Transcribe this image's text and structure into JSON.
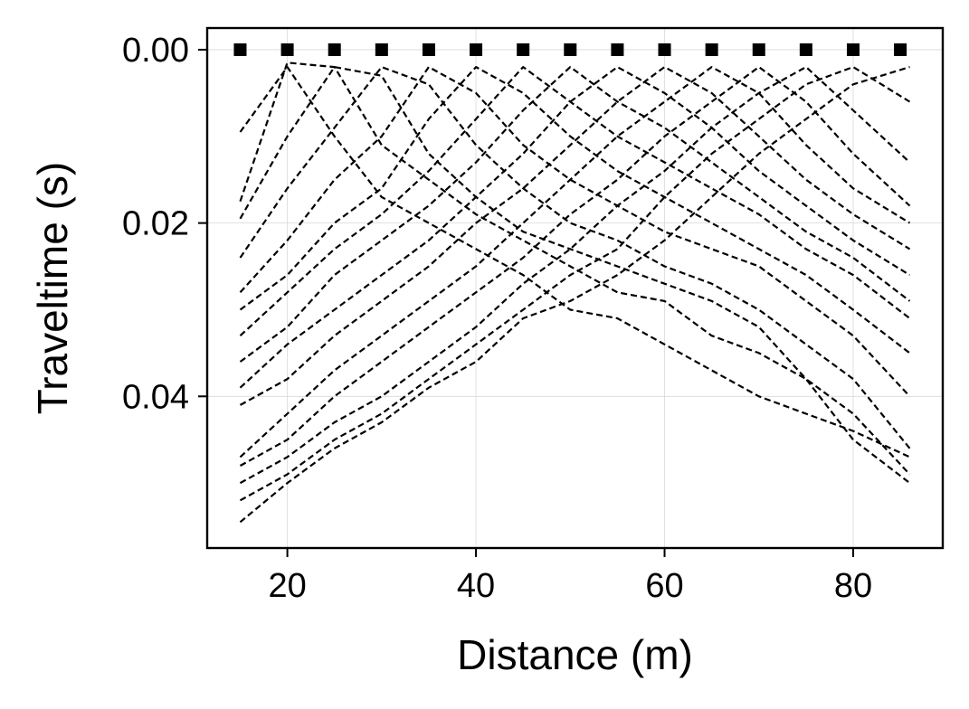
{
  "chart_data": {
    "type": "line",
    "xlabel": "Distance (m)",
    "ylabel": "Traveltime (s)",
    "xlim": [
      11.5,
      89.5
    ],
    "ylim": [
      0.0575,
      -0.0025
    ],
    "y_inverted": true,
    "grid": true,
    "x_ticks": [
      {
        "value": 20,
        "label": "20"
      },
      {
        "value": 40,
        "label": "40"
      },
      {
        "value": 60,
        "label": "60"
      },
      {
        "value": 80,
        "label": "80"
      }
    ],
    "y_ticks": [
      {
        "value": 0.0,
        "label": "0.00"
      },
      {
        "value": 0.02,
        "label": "0.02"
      },
      {
        "value": 0.04,
        "label": "0.04"
      }
    ],
    "line_style": "dashed",
    "line_color": "#000000",
    "source_marker": "square",
    "sources": {
      "x": [
        15,
        20,
        25,
        30,
        35,
        40,
        45,
        50,
        55,
        60,
        65,
        70,
        75,
        80,
        85
      ],
      "y": [
        0,
        0,
        0,
        0,
        0,
        0,
        0,
        0,
        0,
        0,
        0,
        0,
        0,
        0,
        0
      ]
    },
    "receivers_x": [
      15,
      20,
      25,
      30,
      35,
      40,
      45,
      50,
      55,
      60,
      65,
      70,
      75,
      80,
      86
    ],
    "series": [
      {
        "source_x": 15,
        "values": [
          0.0095,
          0.002,
          0.01,
          0.017,
          0.02,
          0.023,
          0.026,
          0.03,
          0.031,
          0.034,
          0.037,
          0.04,
          0.042,
          0.044,
          0.047
        ]
      },
      {
        "source_x": 20,
        "values": [
          0.0175,
          0.0015,
          0.002,
          0.011,
          0.015,
          0.019,
          0.022,
          0.025,
          0.028,
          0.029,
          0.033,
          0.035,
          0.038,
          0.042,
          0.049
        ]
      },
      {
        "source_x": 25,
        "values": [
          0.0195,
          0.01,
          0.002,
          0.003,
          0.012,
          0.017,
          0.021,
          0.023,
          0.025,
          0.027,
          0.029,
          0.032,
          0.038,
          0.045,
          0.05
        ]
      },
      {
        "source_x": 30,
        "values": [
          0.024,
          0.016,
          0.009,
          0.002,
          0.004,
          0.011,
          0.016,
          0.02,
          0.022,
          0.025,
          0.027,
          0.03,
          0.034,
          0.038,
          0.046
        ]
      },
      {
        "source_x": 35,
        "values": [
          0.028,
          0.022,
          0.015,
          0.01,
          0.002,
          0.005,
          0.011,
          0.015,
          0.018,
          0.021,
          0.023,
          0.025,
          0.029,
          0.033,
          0.04
        ]
      },
      {
        "source_x": 40,
        "values": [
          0.03,
          0.026,
          0.02,
          0.016,
          0.008,
          0.002,
          0.005,
          0.01,
          0.014,
          0.017,
          0.02,
          0.023,
          0.026,
          0.03,
          0.035
        ]
      },
      {
        "source_x": 45,
        "values": [
          0.033,
          0.028,
          0.023,
          0.019,
          0.014,
          0.008,
          0.002,
          0.006,
          0.01,
          0.013,
          0.016,
          0.019,
          0.023,
          0.026,
          0.031
        ]
      },
      {
        "source_x": 50,
        "values": [
          0.036,
          0.032,
          0.026,
          0.022,
          0.018,
          0.013,
          0.007,
          0.002,
          0.006,
          0.009,
          0.013,
          0.017,
          0.021,
          0.024,
          0.029
        ]
      },
      {
        "source_x": 55,
        "values": [
          0.039,
          0.034,
          0.03,
          0.026,
          0.022,
          0.017,
          0.012,
          0.006,
          0.002,
          0.005,
          0.009,
          0.014,
          0.018,
          0.022,
          0.026
        ]
      },
      {
        "source_x": 60,
        "values": [
          0.041,
          0.038,
          0.033,
          0.029,
          0.025,
          0.02,
          0.016,
          0.011,
          0.006,
          0.002,
          0.005,
          0.01,
          0.015,
          0.019,
          0.023
        ]
      },
      {
        "source_x": 65,
        "values": [
          0.047,
          0.042,
          0.037,
          0.033,
          0.029,
          0.025,
          0.02,
          0.015,
          0.01,
          0.006,
          0.002,
          0.005,
          0.011,
          0.016,
          0.02
        ]
      },
      {
        "source_x": 70,
        "values": [
          0.048,
          0.045,
          0.04,
          0.036,
          0.032,
          0.028,
          0.024,
          0.019,
          0.015,
          0.01,
          0.006,
          0.002,
          0.006,
          0.012,
          0.018
        ]
      },
      {
        "source_x": 75,
        "values": [
          0.05,
          0.047,
          0.043,
          0.04,
          0.036,
          0.032,
          0.027,
          0.023,
          0.018,
          0.014,
          0.009,
          0.005,
          0.002,
          0.007,
          0.013
        ]
      },
      {
        "source_x": 80,
        "values": [
          0.052,
          0.049,
          0.045,
          0.042,
          0.038,
          0.034,
          0.03,
          0.026,
          0.023,
          0.017,
          0.012,
          0.008,
          0.004,
          0.002,
          0.006
        ]
      },
      {
        "source_x": 85,
        "values": [
          0.0545,
          0.05,
          0.046,
          0.043,
          0.039,
          0.036,
          0.031,
          0.029,
          0.026,
          0.022,
          0.017,
          0.012,
          0.008,
          0.004,
          0.002
        ]
      }
    ]
  }
}
